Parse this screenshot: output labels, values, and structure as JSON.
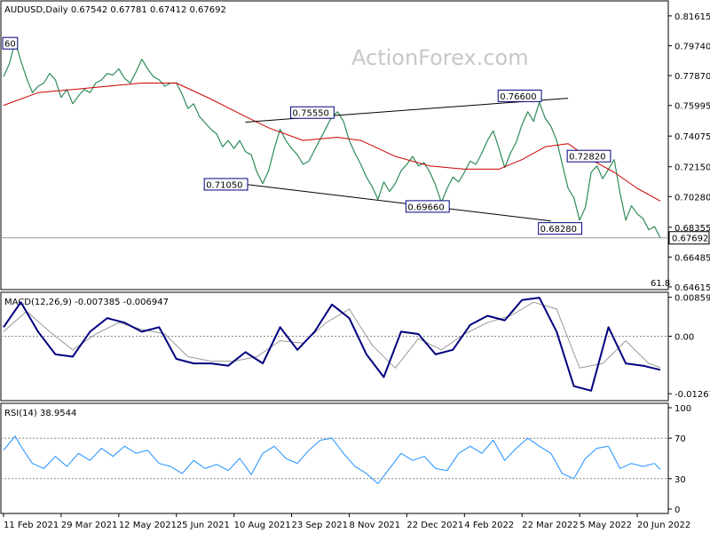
{
  "chart_data": {
    "type": "line",
    "watermark": "ActionForex.com",
    "price_panel": {
      "title": "AUDUSD,Daily  0.67542 0.67781 0.67412 0.67692",
      "ylim": [
        0.645,
        0.825
      ],
      "yticks": [
        "0.81615",
        "0.79740",
        "0.77870",
        "0.75995",
        "0.74075",
        "0.72150",
        "0.70280",
        "0.68355",
        "0.66485",
        "0.64615"
      ],
      "ytick_values": [
        0.81615,
        0.7974,
        0.7787,
        0.75995,
        0.74075,
        0.7215,
        0.7028,
        0.68355,
        0.66485,
        0.64615
      ],
      "current_price_label": "0.67692",
      "current_price": 0.67692,
      "fib_label": "61.8",
      "price_series": [
        [
          0,
          0.778
        ],
        [
          1,
          0.786
        ],
        [
          2,
          0.8
        ],
        [
          3,
          0.788
        ],
        [
          4,
          0.777
        ],
        [
          5,
          0.768
        ],
        [
          6,
          0.772
        ],
        [
          7,
          0.774
        ],
        [
          8,
          0.78
        ],
        [
          9,
          0.776
        ],
        [
          10,
          0.765
        ],
        [
          11,
          0.77
        ],
        [
          12,
          0.761
        ],
        [
          13,
          0.766
        ],
        [
          14,
          0.77
        ],
        [
          15,
          0.768
        ],
        [
          16,
          0.774
        ],
        [
          17,
          0.776
        ],
        [
          18,
          0.78
        ],
        [
          19,
          0.779
        ],
        [
          20,
          0.783
        ],
        [
          21,
          0.777
        ],
        [
          22,
          0.774
        ],
        [
          23,
          0.781
        ],
        [
          24,
          0.789
        ],
        [
          25,
          0.783
        ],
        [
          26,
          0.778
        ],
        [
          27,
          0.776
        ],
        [
          28,
          0.772
        ],
        [
          29,
          0.774
        ],
        [
          30,
          0.774
        ],
        [
          31,
          0.767
        ],
        [
          32,
          0.758
        ],
        [
          33,
          0.761
        ],
        [
          34,
          0.753
        ],
        [
          35,
          0.749
        ],
        [
          36,
          0.745
        ],
        [
          37,
          0.742
        ],
        [
          38,
          0.734
        ],
        [
          39,
          0.738
        ],
        [
          40,
          0.733
        ],
        [
          41,
          0.738
        ],
        [
          42,
          0.731
        ],
        [
          43,
          0.729
        ],
        [
          44,
          0.718
        ],
        [
          45,
          0.711
        ],
        [
          46,
          0.719
        ],
        [
          47,
          0.733
        ],
        [
          48,
          0.745
        ],
        [
          49,
          0.738
        ],
        [
          50,
          0.733
        ],
        [
          51,
          0.729
        ],
        [
          52,
          0.723
        ],
        [
          53,
          0.725
        ],
        [
          54,
          0.732
        ],
        [
          55,
          0.739
        ],
        [
          56,
          0.746
        ],
        [
          57,
          0.753
        ],
        [
          58,
          0.756
        ],
        [
          59,
          0.75
        ],
        [
          60,
          0.738
        ],
        [
          61,
          0.73
        ],
        [
          62,
          0.723
        ],
        [
          63,
          0.715
        ],
        [
          64,
          0.709
        ],
        [
          65,
          0.701
        ],
        [
          66,
          0.712
        ],
        [
          67,
          0.706
        ],
        [
          68,
          0.711
        ],
        [
          69,
          0.719
        ],
        [
          70,
          0.723
        ],
        [
          71,
          0.728
        ],
        [
          72,
          0.722
        ],
        [
          73,
          0.724
        ],
        [
          74,
          0.718
        ],
        [
          75,
          0.71
        ],
        [
          76,
          0.699
        ],
        [
          77,
          0.708
        ],
        [
          78,
          0.715
        ],
        [
          79,
          0.712
        ],
        [
          80,
          0.718
        ],
        [
          81,
          0.725
        ],
        [
          82,
          0.723
        ],
        [
          83,
          0.73
        ],
        [
          84,
          0.738
        ],
        [
          85,
          0.744
        ],
        [
          86,
          0.733
        ],
        [
          87,
          0.721
        ],
        [
          88,
          0.73
        ],
        [
          89,
          0.737
        ],
        [
          90,
          0.748
        ],
        [
          91,
          0.756
        ],
        [
          92,
          0.75
        ],
        [
          93,
          0.762
        ],
        [
          94,
          0.752
        ],
        [
          95,
          0.747
        ],
        [
          96,
          0.738
        ],
        [
          97,
          0.723
        ],
        [
          98,
          0.708
        ],
        [
          99,
          0.702
        ],
        [
          100,
          0.688
        ],
        [
          101,
          0.696
        ],
        [
          102,
          0.718
        ],
        [
          103,
          0.722
        ],
        [
          104,
          0.714
        ],
        [
          105,
          0.72
        ],
        [
          106,
          0.726
        ],
        [
          107,
          0.705
        ],
        [
          108,
          0.688
        ],
        [
          109,
          0.697
        ],
        [
          110,
          0.692
        ],
        [
          111,
          0.689
        ],
        [
          112,
          0.682
        ],
        [
          113,
          0.684
        ],
        [
          114,
          0.6769
        ]
      ],
      "ma_series": [
        [
          0,
          0.76
        ],
        [
          6,
          0.768
        ],
        [
          12,
          0.77
        ],
        [
          18,
          0.772
        ],
        [
          24,
          0.774
        ],
        [
          30,
          0.774
        ],
        [
          36,
          0.764
        ],
        [
          42,
          0.753
        ],
        [
          46,
          0.746
        ],
        [
          52,
          0.738
        ],
        [
          58,
          0.74
        ],
        [
          62,
          0.738
        ],
        [
          68,
          0.728
        ],
        [
          74,
          0.722
        ],
        [
          80,
          0.72
        ],
        [
          86,
          0.72
        ],
        [
          90,
          0.726
        ],
        [
          94,
          0.734
        ],
        [
          98,
          0.736
        ],
        [
          102,
          0.726
        ],
        [
          106,
          0.718
        ],
        [
          110,
          0.708
        ],
        [
          114,
          0.7
        ]
      ],
      "trendlines": [
        {
          "from": [
            42,
            0.7495
          ],
          "to": [
            98,
            0.7645
          ]
        },
        {
          "from": [
            42,
            0.7105
          ],
          "to": [
            95,
            0.6875
          ]
        }
      ],
      "annotations": [
        {
          "label": "0.75550",
          "x": 50,
          "y": 0.7555
        },
        {
          "label": "0.71050",
          "x": 35,
          "y": 0.7105
        },
        {
          "label": "0.69660",
          "x": 70,
          "y": 0.6966
        },
        {
          "label": "0.76600",
          "x": 86,
          "y": 0.766
        },
        {
          "label": "0.72820",
          "x": 98,
          "y": 0.7282
        },
        {
          "label": "0.68280",
          "x": 93,
          "y": 0.6828
        },
        {
          "label": "60",
          "x": 0,
          "y": 0.799
        }
      ]
    },
    "macd_panel": {
      "title": "MACD(12,26,9) -0.007385 -0.006947",
      "ylim": [
        -0.014,
        0.0095
      ],
      "yticks": [
        "0.008596",
        "0.00",
        "-0.01267"
      ],
      "ytick_values": [
        0.008596,
        0.0,
        -0.01267
      ],
      "macd_series": [
        [
          0,
          0.002
        ],
        [
          3,
          0.0075
        ],
        [
          6,
          0.001
        ],
        [
          9,
          -0.004
        ],
        [
          12,
          -0.0045
        ],
        [
          15,
          0.001
        ],
        [
          18,
          0.004
        ],
        [
          21,
          0.003
        ],
        [
          24,
          0.001
        ],
        [
          27,
          0.002
        ],
        [
          30,
          -0.005
        ],
        [
          33,
          -0.006
        ],
        [
          36,
          -0.006
        ],
        [
          39,
          -0.0065
        ],
        [
          42,
          -0.0035
        ],
        [
          45,
          -0.006
        ],
        [
          48,
          0.002
        ],
        [
          51,
          -0.003
        ],
        [
          54,
          0.001
        ],
        [
          57,
          0.007
        ],
        [
          60,
          0.004
        ],
        [
          63,
          -0.004
        ],
        [
          66,
          -0.009
        ],
        [
          69,
          0.001
        ],
        [
          72,
          0.0005
        ],
        [
          75,
          -0.004
        ],
        [
          78,
          -0.003
        ],
        [
          81,
          0.0025
        ],
        [
          84,
          0.0045
        ],
        [
          87,
          0.0035
        ],
        [
          90,
          0.008
        ],
        [
          93,
          0.0085
        ],
        [
          96,
          0.001
        ],
        [
          99,
          -0.011
        ],
        [
          102,
          -0.012
        ],
        [
          105,
          0.002
        ],
        [
          108,
          -0.006
        ],
        [
          111,
          -0.0065
        ],
        [
          114,
          -0.0074
        ]
      ],
      "signal_series": [
        [
          0,
          0.001
        ],
        [
          4,
          0.0055
        ],
        [
          8,
          0.001
        ],
        [
          12,
          -0.003
        ],
        [
          16,
          0.0005
        ],
        [
          20,
          0.003
        ],
        [
          24,
          0.0015
        ],
        [
          28,
          0.0005
        ],
        [
          32,
          -0.0045
        ],
        [
          36,
          -0.0055
        ],
        [
          40,
          -0.0055
        ],
        [
          44,
          -0.0045
        ],
        [
          48,
          -0.001
        ],
        [
          52,
          -0.0015
        ],
        [
          56,
          0.003
        ],
        [
          60,
          0.006
        ],
        [
          64,
          -0.002
        ],
        [
          68,
          -0.007
        ],
        [
          72,
          -0.0005
        ],
        [
          76,
          -0.003
        ],
        [
          80,
          0.0005
        ],
        [
          84,
          0.003
        ],
        [
          88,
          0.0045
        ],
        [
          92,
          0.0075
        ],
        [
          96,
          0.006
        ],
        [
          100,
          -0.007
        ],
        [
          104,
          -0.006
        ],
        [
          108,
          -0.001
        ],
        [
          112,
          -0.006
        ],
        [
          114,
          -0.0069
        ]
      ]
    },
    "rsi_panel": {
      "title": "RSI(14) 38.9544",
      "ylim": [
        0,
        100
      ],
      "yticks": [
        "100",
        "70",
        "30",
        "0"
      ],
      "ytick_values": [
        100,
        70,
        30,
        0
      ],
      "rsi_series": [
        [
          0,
          58
        ],
        [
          2,
          72
        ],
        [
          3,
          62
        ],
        [
          5,
          45
        ],
        [
          7,
          40
        ],
        [
          9,
          52
        ],
        [
          11,
          42
        ],
        [
          13,
          55
        ],
        [
          15,
          48
        ],
        [
          17,
          60
        ],
        [
          19,
          52
        ],
        [
          21,
          62
        ],
        [
          23,
          55
        ],
        [
          25,
          58
        ],
        [
          27,
          45
        ],
        [
          29,
          42
        ],
        [
          31,
          35
        ],
        [
          33,
          48
        ],
        [
          35,
          40
        ],
        [
          37,
          44
        ],
        [
          39,
          38
        ],
        [
          41,
          50
        ],
        [
          43,
          34
        ],
        [
          45,
          55
        ],
        [
          47,
          62
        ],
        [
          49,
          50
        ],
        [
          51,
          45
        ],
        [
          53,
          58
        ],
        [
          55,
          68
        ],
        [
          57,
          70
        ],
        [
          59,
          55
        ],
        [
          61,
          42
        ],
        [
          63,
          35
        ],
        [
          65,
          25
        ],
        [
          67,
          40
        ],
        [
          69,
          55
        ],
        [
          71,
          48
        ],
        [
          73,
          52
        ],
        [
          75,
          40
        ],
        [
          77,
          38
        ],
        [
          79,
          55
        ],
        [
          81,
          62
        ],
        [
          83,
          55
        ],
        [
          85,
          68
        ],
        [
          87,
          48
        ],
        [
          89,
          60
        ],
        [
          91,
          70
        ],
        [
          93,
          62
        ],
        [
          95,
          55
        ],
        [
          97,
          35
        ],
        [
          99,
          30
        ],
        [
          101,
          50
        ],
        [
          103,
          60
        ],
        [
          105,
          62
        ],
        [
          107,
          40
        ],
        [
          109,
          45
        ],
        [
          111,
          42
        ],
        [
          113,
          45
        ],
        [
          114,
          39
        ]
      ]
    },
    "x_axis": {
      "n_points": 115,
      "tick_labels": [
        "11 Feb 2021",
        "29 Mar 2021",
        "12 May 2021",
        "25 Jun 2021",
        "10 Aug 2021",
        "23 Sep 2021",
        "8 Nov 2021",
        "22 Dec 2021",
        "4 Feb 2022",
        "22 Mar 2022",
        "5 May 2022",
        "20 Jun 2022"
      ],
      "tick_indices": [
        0,
        10,
        20,
        30,
        40,
        50,
        60,
        70,
        80,
        90,
        100,
        110
      ]
    },
    "colors": {
      "price": "#2e8b57",
      "ma": "#cc0000",
      "macd": "#00007f",
      "signal": "#999999",
      "rsi": "#1e90ff",
      "grid": "#888888"
    }
  }
}
